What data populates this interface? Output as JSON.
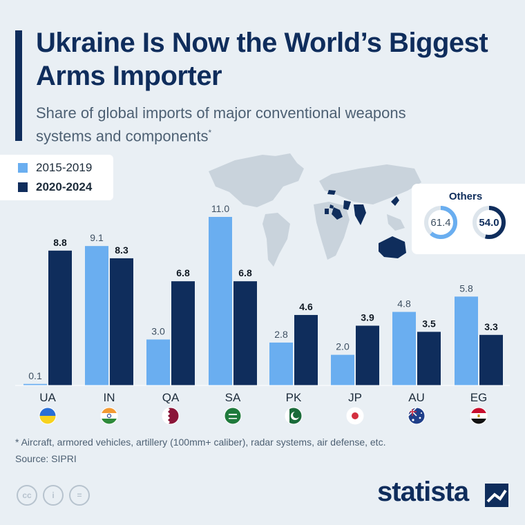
{
  "title": "Ukraine Is Now the World’s Biggest Arms Importer",
  "subtitle": "Share of global imports of major conventional weapons systems and components",
  "subtitle_mark": "*",
  "colors": {
    "series_2015_2019": "#6aaef0",
    "series_2020_2024": "#0f2d5c",
    "text_dark": "#0f2d5c",
    "map_gray": "#c9d3dc",
    "highlight": "#0f2d5c"
  },
  "chart_data": {
    "type": "bar",
    "categories": [
      "UA",
      "IN",
      "QA",
      "SA",
      "PK",
      "JP",
      "AU",
      "EG"
    ],
    "series": [
      {
        "name": "2015-2019",
        "values": [
          0.1,
          9.1,
          3.0,
          11.0,
          2.8,
          2.0,
          4.8,
          5.8
        ],
        "labels": [
          "0.1",
          "9.1",
          "3.0",
          "11.0",
          "2.8",
          "2.0",
          "4.8",
          "5.8"
        ]
      },
      {
        "name": "2020-2024",
        "values": [
          8.8,
          8.3,
          6.8,
          6.8,
          4.6,
          3.9,
          3.5,
          3.3
        ],
        "labels": [
          "8.8",
          "8.3",
          "6.8",
          "6.8",
          "4.6",
          "3.9",
          "3.5",
          "3.3"
        ]
      }
    ],
    "ylim": [
      0,
      11.0
    ],
    "legend_position": "top-left",
    "grid": false,
    "others": {
      "title": "Others",
      "values": [
        61.4,
        54.0
      ],
      "labels": [
        "61.4",
        "54.0"
      ]
    }
  },
  "flags": {
    "UA": {
      "icon": "flag-ukraine-icon"
    },
    "IN": {
      "icon": "flag-india-icon"
    },
    "QA": {
      "icon": "flag-qatar-icon"
    },
    "SA": {
      "icon": "flag-saudi-arabia-icon"
    },
    "PK": {
      "icon": "flag-pakistan-icon"
    },
    "JP": {
      "icon": "flag-japan-icon"
    },
    "AU": {
      "icon": "flag-australia-icon"
    },
    "EG": {
      "icon": "flag-egypt-icon"
    }
  },
  "footnote": "* Aircraft, armored vehicles, artillery (100mm+ caliber), radar systems, air defense, etc.",
  "source": "Source: SIPRI",
  "brand": "statista",
  "license_icons": [
    "cc",
    "i",
    "="
  ]
}
